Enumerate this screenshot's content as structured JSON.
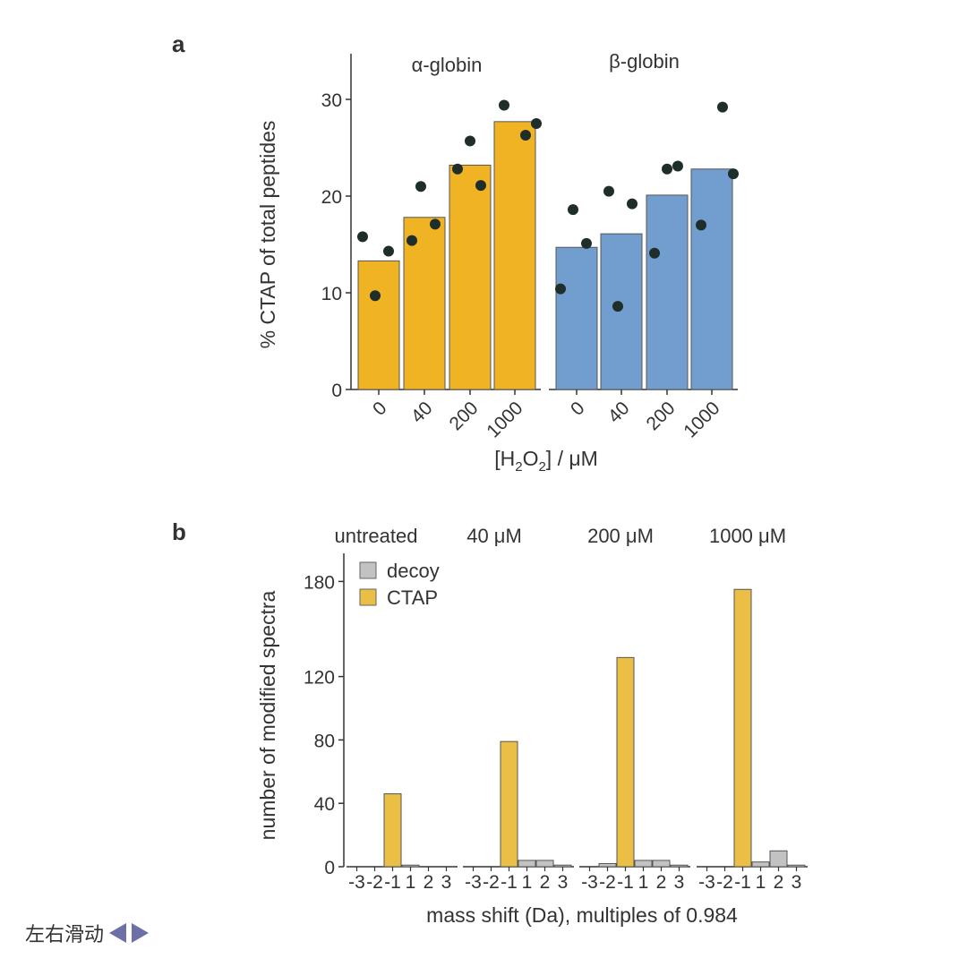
{
  "chart_data": [
    {
      "panel": "a",
      "type": "bar",
      "ylabel": "% CTAP of total peptides",
      "xlabel": "[H2O2] / μM",
      "ylim": [
        0,
        30
      ],
      "yticks": [
        0,
        10,
        20,
        30
      ],
      "categories": [
        "0",
        "40",
        "200",
        "1000"
      ],
      "facets": [
        {
          "label": "α-globin",
          "color": "#f0b323",
          "values": [
            13.3,
            17.8,
            23.2,
            27.7
          ],
          "points": [
            [
              15.8,
              9.7,
              14.3
            ],
            [
              21.0,
              15.4,
              17.1
            ],
            [
              22.8,
              25.7,
              21.1
            ],
            [
              29.4,
              26.3,
              27.5
            ]
          ]
        },
        {
          "label": "β-globin",
          "color": "#719ecf",
          "values": [
            14.7,
            16.1,
            20.1,
            22.8
          ],
          "points": [
            [
              10.4,
              18.6,
              15.1
            ],
            [
              8.6,
              20.5,
              19.2
            ],
            [
              14.1,
              22.8,
              23.1
            ],
            [
              17.0,
              29.2,
              22.3
            ]
          ]
        }
      ],
      "point_color": "#1f2d2b"
    },
    {
      "panel": "b",
      "type": "bar",
      "ylabel": "number of modified spectra",
      "xlabel": "mass shift (Da), multiples of 0.984",
      "ylim": [
        0,
        190
      ],
      "yticks": [
        0,
        40,
        80,
        120,
        180
      ],
      "categories": [
        "-3",
        "-2",
        "-1",
        "1",
        "2",
        "3"
      ],
      "legend": [
        {
          "name": "decoy",
          "color": "#c2c2c2"
        },
        {
          "name": "CTAP",
          "color": "#ebbf45"
        }
      ],
      "series_by_category": [
        "decoy",
        "decoy",
        "CTAP",
        "decoy",
        "decoy",
        "decoy"
      ],
      "facets": [
        {
          "label": "untreated",
          "values": [
            0,
            0,
            46,
            1,
            0,
            0
          ]
        },
        {
          "label": "40 μM",
          "values": [
            0,
            0,
            79,
            4,
            4,
            1
          ]
        },
        {
          "label": "200 μM",
          "values": [
            0,
            2,
            132,
            4,
            4,
            1
          ]
        },
        {
          "label": "1000 μM",
          "values": [
            0,
            0,
            175,
            3,
            10,
            1
          ]
        }
      ]
    }
  ],
  "swipe_hint": {
    "text": "左右滑动",
    "left_icon": "triangle-left-icon",
    "right_icon": "triangle-right-icon",
    "color": "#6d6fa8"
  }
}
